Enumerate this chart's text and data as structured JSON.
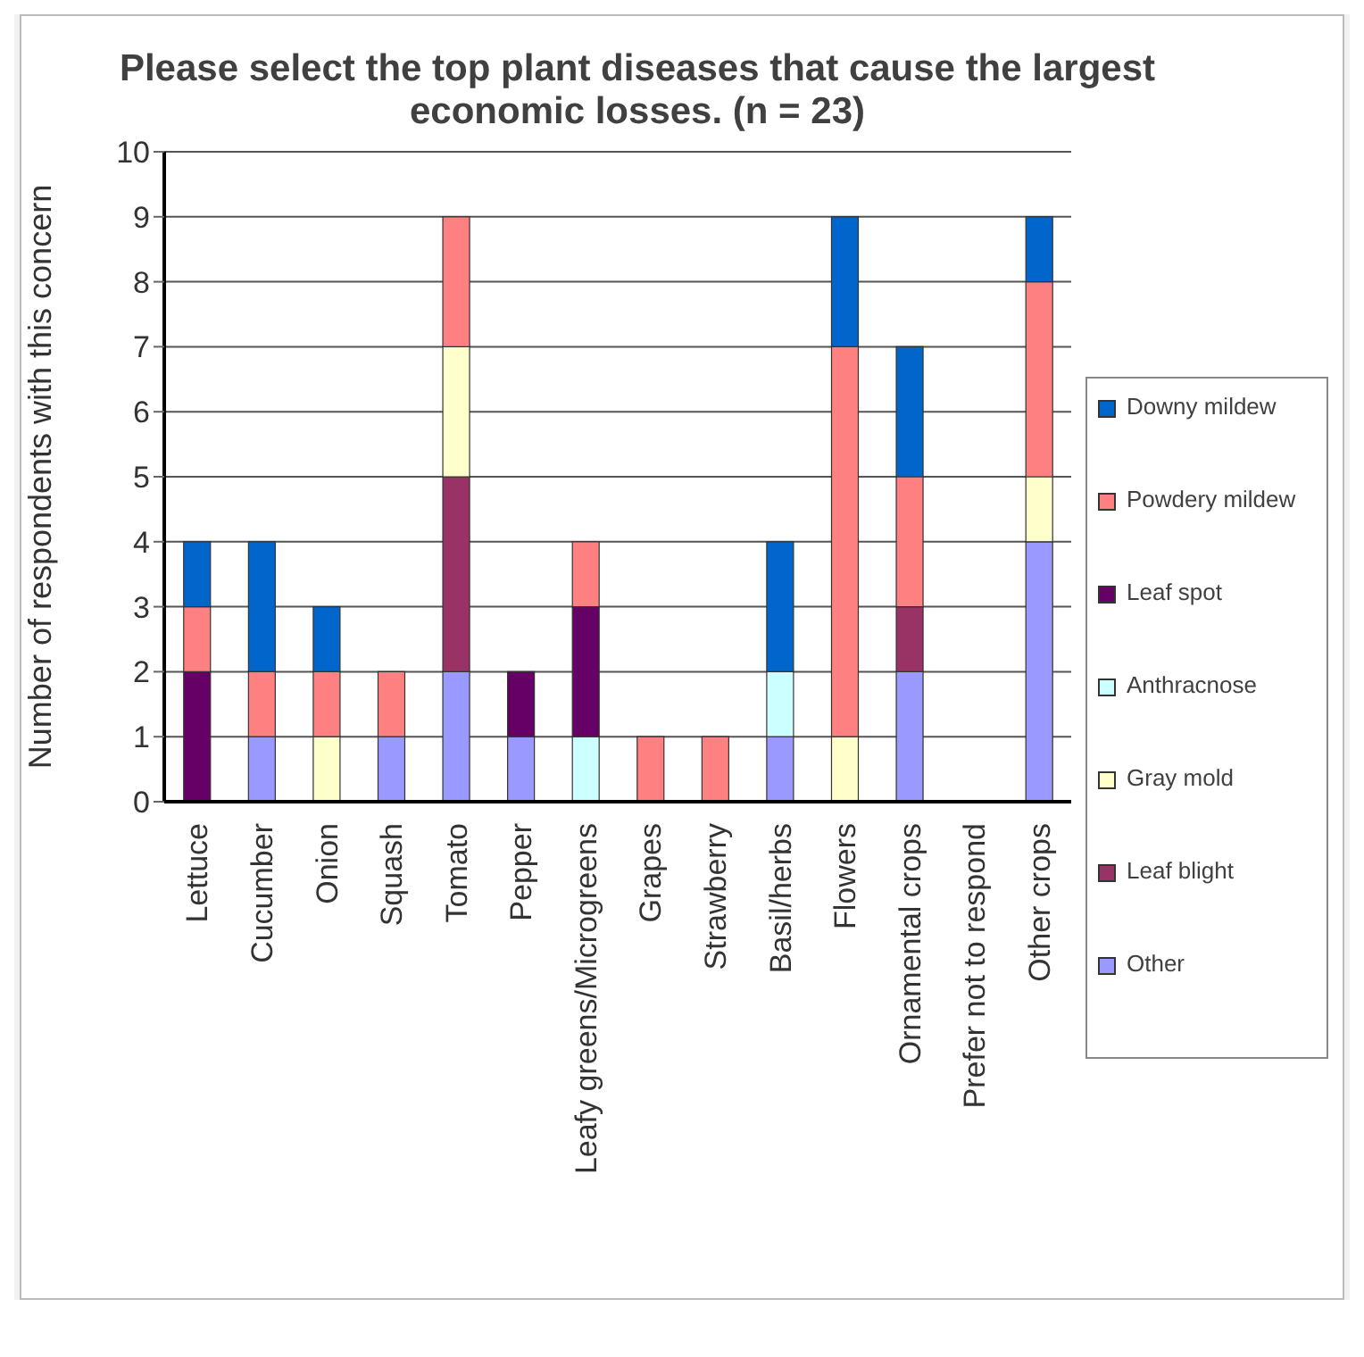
{
  "chart_data": {
    "type": "bar",
    "title": "Please select the top plant diseases that cause the largest economic losses. (n = 23)",
    "ylabel": "Number of respondents with this concern",
    "categories": [
      "Lettuce",
      "Cucumber",
      "Onion",
      "Squash",
      "Tomato",
      "Pepper",
      "Leafy greens/Microgreens",
      "Grapes",
      "Strawberry",
      "Basil/herbs",
      "Flowers",
      "Ornamental crops",
      "Prefer not to respond",
      "Other crops"
    ],
    "stacked": true,
    "ylim": [
      0,
      10
    ],
    "yticks": [
      0,
      1,
      2,
      3,
      4,
      5,
      6,
      7,
      8,
      9,
      10
    ],
    "grid": "y",
    "legend": "right",
    "series": [
      {
        "name": "Other",
        "color": "#9999ff",
        "values": [
          0,
          1,
          0,
          1,
          2,
          1,
          0,
          0,
          0,
          1,
          0,
          2,
          0,
          4
        ]
      },
      {
        "name": "Leaf blight",
        "color": "#993366",
        "values": [
          0,
          0,
          0,
          0,
          3,
          0,
          0,
          0,
          0,
          0,
          0,
          1,
          0,
          0
        ]
      },
      {
        "name": "Gray mold",
        "color": "#ffffcc",
        "values": [
          0,
          0,
          1,
          0,
          2,
          0,
          0,
          0,
          0,
          0,
          1,
          0,
          0,
          1
        ]
      },
      {
        "name": "Anthracnose",
        "color": "#ccffff",
        "values": [
          0,
          0,
          0,
          0,
          0,
          0,
          1,
          0,
          0,
          1,
          0,
          0,
          0,
          0
        ]
      },
      {
        "name": "Leaf spot",
        "color": "#660066",
        "values": [
          2,
          0,
          0,
          0,
          0,
          1,
          2,
          0,
          0,
          0,
          0,
          0,
          0,
          0
        ]
      },
      {
        "name": "Powdery mildew",
        "color": "#ff8080",
        "values": [
          1,
          1,
          1,
          1,
          2,
          0,
          1,
          1,
          1,
          0,
          6,
          2,
          0,
          3
        ]
      },
      {
        "name": "Downy mildew",
        "color": "#0066cc",
        "values": [
          1,
          2,
          1,
          0,
          0,
          0,
          0,
          0,
          0,
          2,
          2,
          2,
          0,
          1
        ]
      }
    ]
  }
}
